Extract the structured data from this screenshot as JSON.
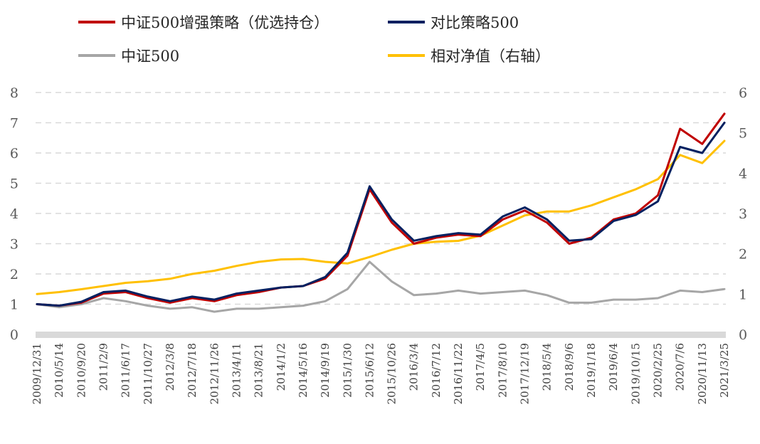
{
  "legend": [
    {
      "label": "中证500增强策略（优选持仓）",
      "color": "#C00000"
    },
    {
      "label": "对比策略500",
      "color": "#002060"
    },
    {
      "label": "中证500",
      "color": "#A6A6A6"
    },
    {
      "label": "相对净值（右轴）",
      "color": "#FFC000"
    }
  ],
  "chart_data": {
    "type": "line",
    "title": "",
    "left_axis": {
      "ylim": [
        0,
        8
      ],
      "ticks": [
        "0",
        "1",
        "2",
        "3",
        "4",
        "5",
        "6",
        "7",
        "8"
      ]
    },
    "right_axis": {
      "ylim": [
        0,
        6
      ],
      "ticks": [
        "0",
        "1",
        "2",
        "3",
        "4",
        "5",
        "6"
      ]
    },
    "grid": "horizontal dashed",
    "legend_position": "top",
    "x_tick_labels": [
      "2009/12/31",
      "2010/5/14",
      "2010/9/20",
      "2011/2/9",
      "2011/6/17",
      "2011/10/27",
      "2012/3/8",
      "2012/7/18",
      "2012/11/26",
      "2013/4/11",
      "2013/8/21",
      "2014/1/2",
      "2014/5/16",
      "2014/9/19",
      "2015/1/30",
      "2015/6/12",
      "2015/10/26",
      "2016/3/4",
      "2016/7/12",
      "2016/11/22",
      "2017/4/5",
      "2017/8/10",
      "2017/12/19",
      "2018/5/4",
      "2018/9/6",
      "2019/1/18",
      "2019/6/4",
      "2019/10/15",
      "2020/2/25",
      "2020/7/6",
      "2020/11/13",
      "2021/3/25"
    ],
    "series": [
      {
        "name": "中证500增强策略（优选持仓）",
        "axis": "left",
        "color": "#C00000",
        "values": [
          1.0,
          0.95,
          1.05,
          1.35,
          1.4,
          1.2,
          1.05,
          1.2,
          1.1,
          1.3,
          1.4,
          1.55,
          1.6,
          1.85,
          2.6,
          4.8,
          3.7,
          3.0,
          3.2,
          3.3,
          3.25,
          3.8,
          4.1,
          3.7,
          3.0,
          3.2,
          3.8,
          4.0,
          4.6,
          6.8,
          6.3,
          7.3
        ]
      },
      {
        "name": "对比策略500",
        "axis": "left",
        "color": "#002060",
        "values": [
          1.0,
          0.95,
          1.08,
          1.4,
          1.45,
          1.25,
          1.1,
          1.25,
          1.15,
          1.35,
          1.45,
          1.55,
          1.6,
          1.9,
          2.7,
          4.9,
          3.8,
          3.1,
          3.25,
          3.35,
          3.3,
          3.9,
          4.2,
          3.8,
          3.1,
          3.15,
          3.75,
          3.95,
          4.4,
          6.2,
          6.0,
          7.0
        ]
      },
      {
        "name": "中证500",
        "axis": "left",
        "color": "#A6A6A6",
        "values": [
          1.0,
          0.9,
          1.0,
          1.2,
          1.1,
          0.95,
          0.85,
          0.9,
          0.75,
          0.85,
          0.85,
          0.9,
          0.95,
          1.1,
          1.5,
          2.4,
          1.75,
          1.3,
          1.35,
          1.45,
          1.35,
          1.4,
          1.45,
          1.3,
          1.05,
          1.05,
          1.15,
          1.15,
          1.2,
          1.45,
          1.4,
          1.5
        ]
      },
      {
        "name": "相对净值（右轴）",
        "axis": "right",
        "color": "#FFC000",
        "values": [
          1.0,
          1.05,
          1.12,
          1.2,
          1.28,
          1.32,
          1.38,
          1.5,
          1.58,
          1.7,
          1.8,
          1.86,
          1.87,
          1.8,
          1.76,
          1.92,
          2.1,
          2.25,
          2.3,
          2.32,
          2.45,
          2.7,
          2.95,
          3.05,
          3.05,
          3.2,
          3.4,
          3.6,
          3.85,
          4.45,
          4.25,
          4.8
        ]
      }
    ]
  }
}
